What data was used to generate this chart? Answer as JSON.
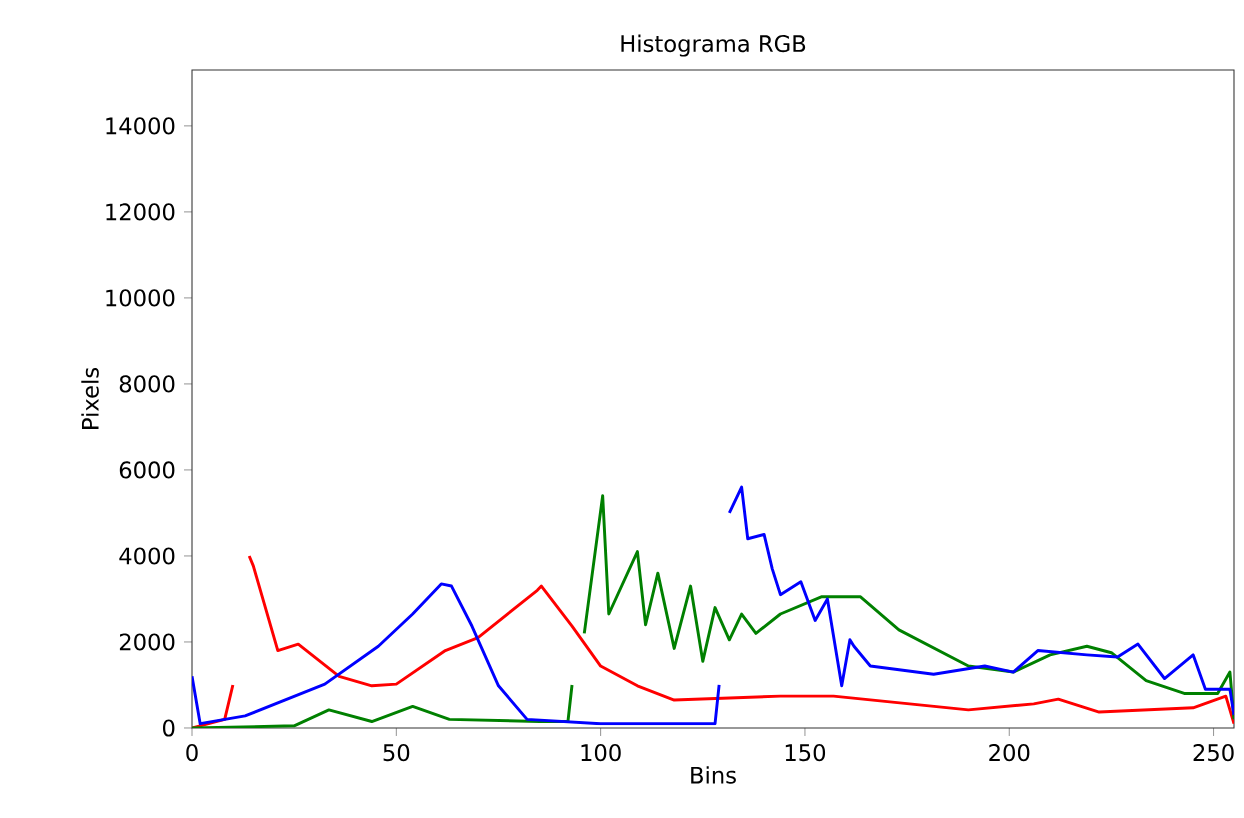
{
  "chart_data": {
    "type": "line",
    "title": "Histograma RGB",
    "xlabel": "Bins",
    "ylabel": "Pixels",
    "xlim": [
      0,
      255
    ],
    "ylim": [
      0,
      15300
    ],
    "xticks": [
      0,
      50,
      100,
      150,
      200,
      250
    ],
    "yticks": [
      0,
      2000,
      4000,
      6000,
      8000,
      10000,
      12000,
      14000
    ],
    "series": [
      {
        "color": "#ff0000",
        "x": [
          0,
          8,
          10,
          11,
          13,
          14,
          15,
          21,
          26,
          36,
          44,
          50,
          62,
          70,
          84.5,
          85.5,
          93,
          100,
          109,
          118,
          144,
          157,
          190,
          206,
          212,
          222,
          245,
          253,
          255
        ],
        "values": [
          0,
          200,
          1000,
          null,
          null,
          4000,
          3770,
          1800,
          1950,
          1200,
          980,
          1020,
          1800,
          2100,
          3200,
          3300,
          2370,
          1440,
          980,
          650,
          740,
          740,
          420,
          560,
          670,
          370,
          470,
          740,
          100
        ]
      },
      {
        "color": "#008000",
        "x": [
          0,
          25,
          33.5,
          44,
          54,
          63,
          85,
          92,
          93,
          94,
          95,
          96,
          100.5,
          102,
          109,
          111,
          114,
          118,
          122,
          125,
          128,
          131.5,
          134.5,
          138,
          144,
          154,
          163.6,
          173,
          190,
          201,
          210,
          219,
          225,
          233.5,
          243,
          251,
          254,
          255
        ],
        "values": [
          0,
          50,
          420,
          150,
          500,
          200,
          150,
          150,
          1000,
          null,
          null,
          2200,
          5400,
          2650,
          4100,
          2400,
          3600,
          1850,
          3300,
          1550,
          2800,
          2050,
          2650,
          2200,
          2650,
          3050,
          3050,
          2280,
          1440,
          1300,
          1700,
          1900,
          1750,
          1100,
          800,
          800,
          1300,
          200
        ]
      },
      {
        "color": "#0000ff",
        "x": [
          0,
          2,
          13,
          32.5,
          45.6,
          54,
          61,
          63.5,
          68.5,
          75,
          82,
          100,
          128,
          129,
          130,
          131,
          131.5,
          134.5,
          136,
          140,
          142,
          144,
          149,
          152.5,
          155.5,
          159,
          161,
          162,
          166,
          181.5,
          194,
          201,
          207,
          219,
          226.5,
          231.5,
          238,
          245,
          248,
          254,
          255
        ],
        "values": [
          1200,
          100,
          280,
          1020,
          1900,
          2650,
          3350,
          3300,
          2370,
          980,
          200,
          100,
          100,
          1000,
          null,
          null,
          5000,
          5600,
          4400,
          4500,
          3700,
          3100,
          3400,
          2500,
          3000,
          980,
          2050,
          1900,
          1440,
          1250,
          1440,
          1300,
          1800,
          1700,
          1650,
          1950,
          1150,
          1700,
          900,
          900,
          300
        ]
      }
    ]
  }
}
